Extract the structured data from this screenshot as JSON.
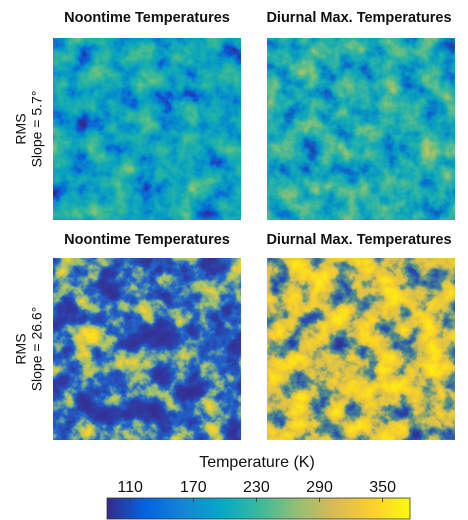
{
  "panels": {
    "column_titles": [
      "Noontime Temperatures",
      "Diurnal Max. Temperatures",
      "Noontime Temperatures",
      "Diurnal Max. Temperatures"
    ],
    "rows": [
      {
        "label_top": "RMS",
        "label_bottom": "Slope = 5.7°"
      },
      {
        "label_top": "RMS",
        "label_bottom": "Slope = 26.6°"
      }
    ]
  },
  "colorbar": {
    "label": "Temperature (K)",
    "lim": [
      88,
      376
    ],
    "ticks": [
      110,
      170,
      230,
      290,
      350
    ]
  }
}
